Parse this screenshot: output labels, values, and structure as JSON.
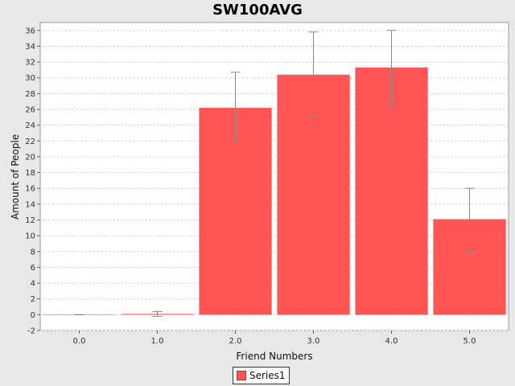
{
  "chart_data": {
    "type": "bar",
    "title": "SW100AVG",
    "xlabel": "Friend Numbers",
    "ylabel": "Amount of People",
    "categories": [
      "0.0",
      "1.0",
      "2.0",
      "3.0",
      "4.0",
      "5.0"
    ],
    "series": [
      {
        "name": "Series1",
        "color": "#ff5555",
        "values": [
          0,
          0.1,
          26.2,
          30.4,
          31.3,
          12.1
        ],
        "error_low": [
          0,
          -0.2,
          21.8,
          25.1,
          26.5,
          8.0
        ],
        "error_high": [
          0,
          0.4,
          30.7,
          35.8,
          36.0,
          16.0
        ]
      }
    ],
    "ylim": [
      -2,
      37
    ],
    "yticks": [
      -2,
      0,
      2,
      4,
      6,
      8,
      10,
      12,
      14,
      16,
      18,
      20,
      22,
      24,
      26,
      28,
      30,
      32,
      34,
      36
    ],
    "grid": true,
    "legend_position": "bottom"
  }
}
